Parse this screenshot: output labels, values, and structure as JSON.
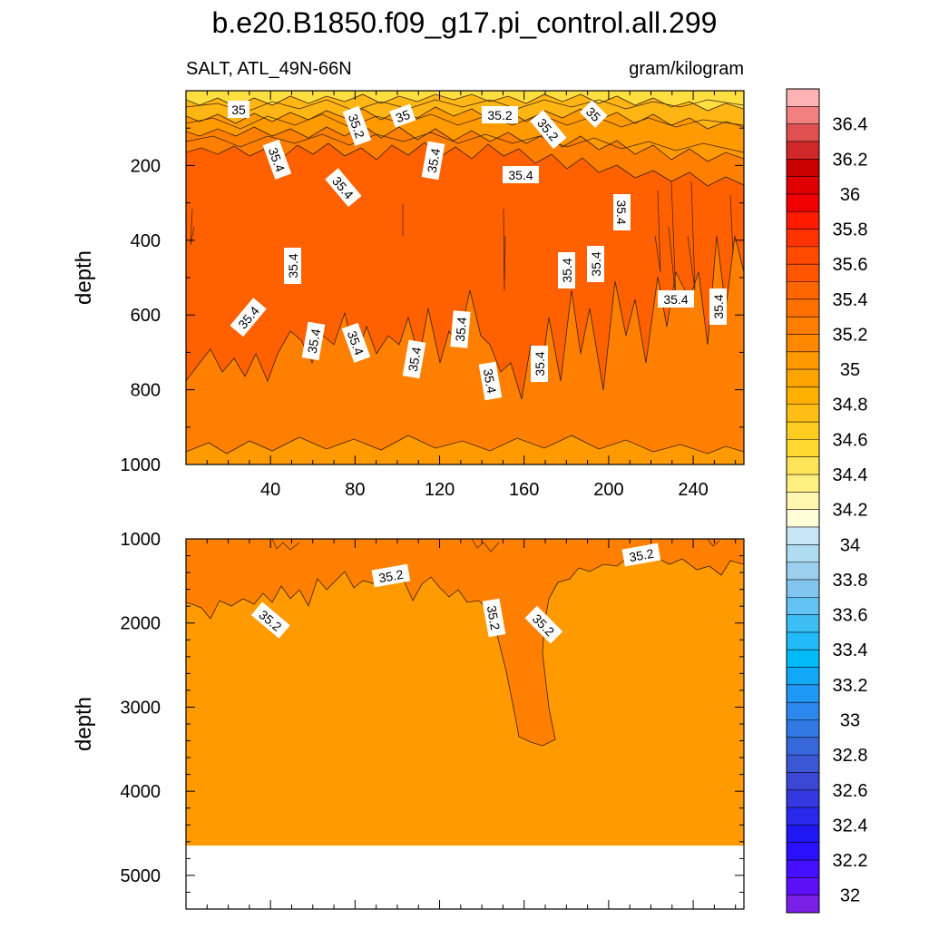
{
  "chart_data": {
    "type": "contour",
    "title": "b.e20.B1850.f09_g17.pi_control.all.299",
    "left_string": "SALT, ATL_49N-66N",
    "right_string": "gram/kilogram",
    "panels": [
      {
        "name": "upper",
        "ylabel": "depth",
        "xlim": [
          0,
          264
        ],
        "ylim": [
          1000,
          0
        ],
        "x_ticks": [
          40,
          80,
          120,
          160,
          200,
          240
        ],
        "y_ticks": [
          200,
          400,
          600,
          800,
          1000
        ],
        "contour_labels": [
          "35",
          "35.2",
          "35",
          "35.2",
          "35.2",
          "35",
          "35.4",
          "35.4",
          "35.4",
          "35.4",
          "35.4",
          "35.4",
          "35.4",
          "35.4",
          "35.4",
          "35.4",
          "35.4",
          "35.4",
          "35.4",
          "35.4",
          "35.4",
          "35.4",
          "35.4"
        ]
      },
      {
        "name": "lower",
        "ylabel": "depth",
        "xlim": [
          0,
          264
        ],
        "ylim": [
          5400,
          1000
        ],
        "y_ticks": [
          1000,
          2000,
          3000,
          4000,
          5000
        ],
        "ocean_bottom": 4600,
        "contour_labels": [
          "35.2",
          "35.2",
          "35.2",
          "35.2",
          "35.2"
        ]
      }
    ],
    "colorbar": {
      "labels": [
        "36.4",
        "36.2",
        "36",
        "35.8",
        "35.6",
        "35.4",
        "35.2",
        "35",
        "34.8",
        "34.6",
        "34.4",
        "34.2",
        "34",
        "33.8",
        "33.6",
        "33.4",
        "33.2",
        "33",
        "32.8",
        "32.6",
        "32.4",
        "32.2",
        "32"
      ],
      "colors": [
        "#fdb3b3",
        "#f28080",
        "#e05050",
        "#d02828",
        "#c80000",
        "#e00000",
        "#f00000",
        "#ff1a00",
        "#ff3300",
        "#ff4a00",
        "#ff5500",
        "#ff6600",
        "#ff7000",
        "#ff7d00",
        "#ff8800",
        "#ff9900",
        "#ffa500",
        "#ffb000",
        "#ffbe16",
        "#ffcc20",
        "#ffd830",
        "#ffe45a",
        "#ffee80",
        "#fff7b0",
        "#fffdd8",
        "#c8e6f5",
        "#b0dcf2",
        "#9ccfee",
        "#82c6ef",
        "#62c2f3",
        "#3cbef5",
        "#20bbf8",
        "#00bbf8",
        "#12a8f8",
        "#2098f5",
        "#2c88ec",
        "#3178e2",
        "#3668da",
        "#3a58d3",
        "#3a48d5",
        "#3538e0",
        "#2a28ea",
        "#2018f4",
        "#2a10ff",
        "#4410ff",
        "#5c10f6",
        "#7a20e6"
      ]
    },
    "palette": {
      "band_35_4_plus": "#ff6000",
      "band_35_2_35_4": "#ff7f00",
      "band_35_35_2": "#ff9a00",
      "band_34_8_35": "#ffb514",
      "band_below_34_8": "#ffde40",
      "contour_line": "#3a2210"
    }
  }
}
